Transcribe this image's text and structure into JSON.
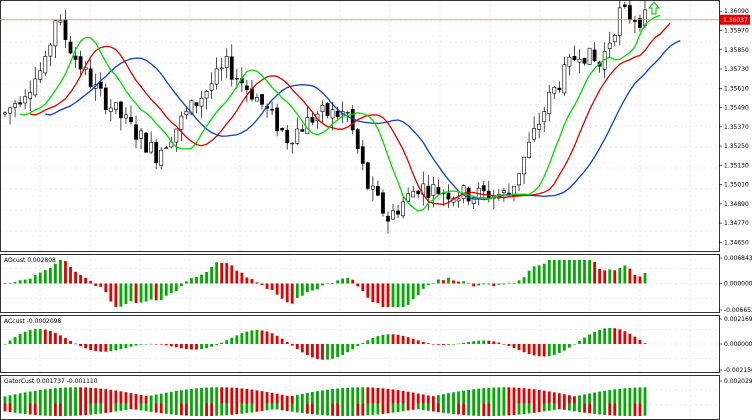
{
  "chart_data": [
    {
      "type": "candlestick",
      "panel": "price",
      "yticks": [
        "1.36090",
        "1.35970",
        "1.35850",
        "1.35730",
        "1.35610",
        "1.35490",
        "1.35370",
        "1.35250",
        "1.35130",
        "1.35010",
        "1.34890",
        "1.34770",
        "1.34650"
      ],
      "current_price": "1.36037",
      "ylim": [
        1.3459,
        1.3616
      ],
      "colors": {
        "price_badge": "#e00000",
        "price_line": "#e88080",
        "fast_ma": "#00dd00",
        "mid_ma": "#e00000",
        "slow_ma": "#1040c0",
        "arrow": "#00c000"
      }
    },
    {
      "type": "bar",
      "panel": "AOcust",
      "label": "AOcust 0.002808",
      "yticks": [
        "0.006843",
        "0.000000",
        "-0.006652"
      ],
      "ylim": [
        -0.0072,
        0.0073
      ],
      "colors": {
        "up": "#00aa00",
        "down": "#e00000"
      }
    },
    {
      "type": "bar",
      "panel": "ACcust",
      "label": "ACcust -0.0002098",
      "yticks": [
        "0.0021696",
        "0.0000000",
        "-0.0021560"
      ],
      "ylim": [
        -0.0026,
        0.0026
      ],
      "colors": {
        "up": "#00aa00",
        "down": "#e00000"
      }
    },
    {
      "type": "bar",
      "panel": "GatorCust",
      "label": "GatorCust 0.001737 -0.001110",
      "yticks": [
        "0.002029"
      ],
      "colors": {
        "up": "#00aa00",
        "down": "#e00000"
      }
    }
  ]
}
